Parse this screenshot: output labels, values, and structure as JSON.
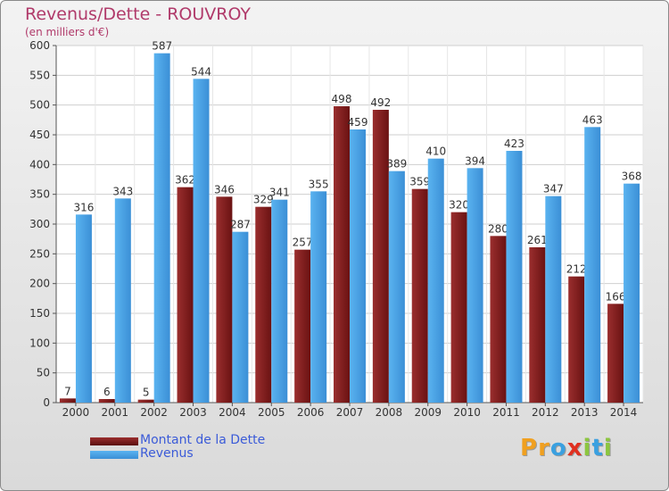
{
  "title": "Revenus/Dette - ROUVROY",
  "subtitle": "(en milliers d'€)",
  "colors": {
    "dette": "#7a1a1a",
    "revenus": "#4aa3e8",
    "title": "#b03a6a",
    "legend_text": "#3b5bd8"
  },
  "chart_data": {
    "type": "bar",
    "title": "Revenus/Dette - ROUVROY",
    "ylabel": "(en milliers d'€)",
    "xlabel": "",
    "ylim": [
      0,
      600
    ],
    "yticks": [
      0,
      50,
      100,
      150,
      200,
      250,
      300,
      350,
      400,
      450,
      500,
      550,
      600
    ],
    "grid": true,
    "legend_position": "bottom-left",
    "categories": [
      "2000",
      "2001",
      "2002",
      "2003",
      "2004",
      "2005",
      "2006",
      "2007",
      "2008",
      "2009",
      "2010",
      "2011",
      "2012",
      "2013",
      "2014"
    ],
    "series": [
      {
        "name": "Montant de la Dette",
        "values": [
          7,
          6,
          5,
          362,
          346,
          329,
          257,
          498,
          492,
          359,
          320,
          280,
          261,
          212,
          166
        ]
      },
      {
        "name": "Revenus",
        "values": [
          316,
          343,
          587,
          544,
          287,
          341,
          355,
          459,
          389,
          410,
          394,
          423,
          347,
          463,
          368
        ]
      }
    ]
  },
  "legend": [
    {
      "label": "Montant de la Dette"
    },
    {
      "label": "Revenus"
    }
  ],
  "logo": {
    "letters": [
      "P",
      "r",
      "o",
      "x",
      "i",
      "t",
      "i"
    ],
    "colors": [
      "#f0a020",
      "#f0a020",
      "#3aa0e0",
      "#e03020",
      "#8cc63f",
      "#3aa0e0",
      "#8cc63f"
    ]
  }
}
